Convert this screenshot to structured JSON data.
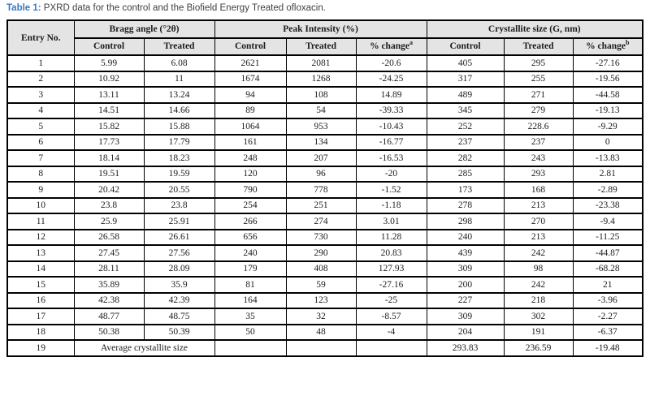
{
  "caption": {
    "label": "Table 1:",
    "text": " PXRD data for the control and the Biofield Energy Treated ofloxacin."
  },
  "colors": {
    "accent_blue": "#3c79c0",
    "header_bg": "#e4e4e4",
    "border": "#000000"
  },
  "table": {
    "entry_header": "Entry No.",
    "groups": [
      {
        "label": "Bragg angle (°2θ)"
      },
      {
        "label": "Peak Intensity (%)"
      },
      {
        "label": "Crystallite size (G, nm)"
      }
    ],
    "subheaders": [
      {
        "label": "Control",
        "sup": ""
      },
      {
        "label": "Treated",
        "sup": ""
      },
      {
        "label": "Control",
        "sup": ""
      },
      {
        "label": "Treated",
        "sup": ""
      },
      {
        "label": "% change",
        "sup": "a"
      },
      {
        "label": "Control",
        "sup": ""
      },
      {
        "label": "Treated",
        "sup": ""
      },
      {
        "label": "% change",
        "sup": "b"
      }
    ],
    "rows": [
      {
        "cells": [
          {
            "t": "1"
          },
          {
            "t": "5.99"
          },
          {
            "t": "6.08"
          },
          {
            "t": "2621"
          },
          {
            "t": "2081"
          },
          {
            "t": "-20.6"
          },
          {
            "t": "405"
          },
          {
            "t": "295"
          },
          {
            "t": "-27.16"
          }
        ]
      },
      {
        "cells": [
          {
            "t": "2"
          },
          {
            "t": "10.92"
          },
          {
            "t": "11"
          },
          {
            "t": "1674"
          },
          {
            "t": "1268"
          },
          {
            "t": "-24.25"
          },
          {
            "t": "317"
          },
          {
            "t": "255"
          },
          {
            "t": "-19.56"
          }
        ]
      },
      {
        "cells": [
          {
            "t": "3"
          },
          {
            "t": "13.11"
          },
          {
            "t": "13.24"
          },
          {
            "t": "94"
          },
          {
            "t": "108"
          },
          {
            "t": "14.89"
          },
          {
            "t": "489"
          },
          {
            "t": "271"
          },
          {
            "t": "-44.58"
          }
        ]
      },
      {
        "cells": [
          {
            "t": "4"
          },
          {
            "t": "14.51"
          },
          {
            "t": "14.66"
          },
          {
            "t": "89"
          },
          {
            "t": "54"
          },
          {
            "t": "-39.33"
          },
          {
            "t": "345"
          },
          {
            "t": "279"
          },
          {
            "t": "-19.13"
          }
        ]
      },
      {
        "cells": [
          {
            "t": "5"
          },
          {
            "t": "15.82"
          },
          {
            "t": "15.88"
          },
          {
            "t": "1064"
          },
          {
            "t": "953"
          },
          {
            "t": "-10.43"
          },
          {
            "t": "252"
          },
          {
            "t": "228.6"
          },
          {
            "t": "-9.29"
          }
        ]
      },
      {
        "cells": [
          {
            "t": "6"
          },
          {
            "t": "17.73"
          },
          {
            "t": "17.79"
          },
          {
            "t": "161"
          },
          {
            "t": "134"
          },
          {
            "t": "-16.77"
          },
          {
            "t": "237"
          },
          {
            "t": "237"
          },
          {
            "t": "0"
          }
        ]
      },
      {
        "cells": [
          {
            "t": "7"
          },
          {
            "t": "18.14"
          },
          {
            "t": "18.23"
          },
          {
            "t": "248"
          },
          {
            "t": "207"
          },
          {
            "t": "-16.53"
          },
          {
            "t": "282"
          },
          {
            "t": "243"
          },
          {
            "t": "-13.83"
          }
        ]
      },
      {
        "cells": [
          {
            "t": "8"
          },
          {
            "t": "19.51"
          },
          {
            "t": "19.59"
          },
          {
            "t": "120"
          },
          {
            "t": "96"
          },
          {
            "t": "-20"
          },
          {
            "t": "285"
          },
          {
            "t": "293"
          },
          {
            "t": "2.81"
          }
        ]
      },
      {
        "cells": [
          {
            "t": "9"
          },
          {
            "t": "20.42"
          },
          {
            "t": "20.55"
          },
          {
            "t": "790"
          },
          {
            "t": "778"
          },
          {
            "t": "-1.52"
          },
          {
            "t": "173"
          },
          {
            "t": "168"
          },
          {
            "t": "-2.89"
          }
        ]
      },
      {
        "cells": [
          {
            "t": "10"
          },
          {
            "t": "23.8"
          },
          {
            "t": "23.8"
          },
          {
            "t": "254"
          },
          {
            "t": "251"
          },
          {
            "t": "-1.18"
          },
          {
            "t": "278"
          },
          {
            "t": "213"
          },
          {
            "t": "-23.38"
          }
        ]
      },
      {
        "cells": [
          {
            "t": "11"
          },
          {
            "t": "25.9"
          },
          {
            "t": "25.91"
          },
          {
            "t": "266"
          },
          {
            "t": "274"
          },
          {
            "t": "3.01"
          },
          {
            "t": "298"
          },
          {
            "t": "270"
          },
          {
            "t": "-9.4"
          }
        ]
      },
      {
        "cells": [
          {
            "t": "12"
          },
          {
            "t": "26.58"
          },
          {
            "t": "26.61"
          },
          {
            "t": "656"
          },
          {
            "t": "730"
          },
          {
            "t": "11.28"
          },
          {
            "t": "240"
          },
          {
            "t": "213"
          },
          {
            "t": "-11.25"
          }
        ]
      },
      {
        "cells": [
          {
            "t": "13"
          },
          {
            "t": "27.45"
          },
          {
            "t": "27.56"
          },
          {
            "t": "240"
          },
          {
            "t": "290"
          },
          {
            "t": "20.83"
          },
          {
            "t": "439"
          },
          {
            "t": "242"
          },
          {
            "t": "-44.87"
          }
        ]
      },
      {
        "cells": [
          {
            "t": "14"
          },
          {
            "t": "28.11"
          },
          {
            "t": "28.09"
          },
          {
            "t": "179"
          },
          {
            "t": "408"
          },
          {
            "t": "127.93"
          },
          {
            "t": "309"
          },
          {
            "t": "98"
          },
          {
            "t": "-68.28"
          }
        ]
      },
      {
        "cells": [
          {
            "t": "15"
          },
          {
            "t": "35.89"
          },
          {
            "t": "35.9"
          },
          {
            "t": "81"
          },
          {
            "t": "59"
          },
          {
            "t": "-27.16"
          },
          {
            "t": "200"
          },
          {
            "t": "242"
          },
          {
            "t": "21"
          }
        ]
      },
      {
        "cells": [
          {
            "t": "16"
          },
          {
            "t": "42.38"
          },
          {
            "t": "42.39"
          },
          {
            "t": "164"
          },
          {
            "t": "123"
          },
          {
            "t": "-25"
          },
          {
            "t": "227"
          },
          {
            "t": "218"
          },
          {
            "t": "-3.96"
          }
        ]
      },
      {
        "cells": [
          {
            "t": "17"
          },
          {
            "t": "48.77"
          },
          {
            "t": "48.75"
          },
          {
            "t": "35"
          },
          {
            "t": "32"
          },
          {
            "t": "-8.57"
          },
          {
            "t": "309"
          },
          {
            "t": "302"
          },
          {
            "t": "-2.27"
          }
        ]
      },
      {
        "cells": [
          {
            "t": "18"
          },
          {
            "t": "50.38"
          },
          {
            "t": "50.39"
          },
          {
            "t": "50"
          },
          {
            "t": "48"
          },
          {
            "t": "-4"
          },
          {
            "t": "204"
          },
          {
            "t": "191"
          },
          {
            "t": "-6.37"
          }
        ]
      },
      {
        "cells": [
          {
            "t": "19"
          },
          {
            "t": "Average crystallite size",
            "colspan": 2
          },
          {
            "t": ""
          },
          {
            "t": ""
          },
          {
            "t": ""
          },
          {
            "t": "293.83"
          },
          {
            "t": "236.59"
          },
          {
            "t": "-19.48"
          }
        ]
      }
    ]
  }
}
